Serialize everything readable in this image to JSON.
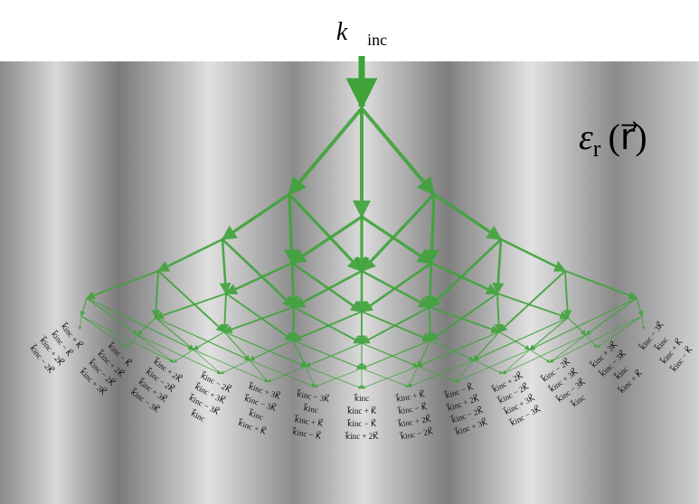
{
  "top_label": {
    "symbol": "k⃗",
    "subscript": "inc"
  },
  "medium_label": {
    "symbol": "ε",
    "subscript": "r",
    "argument": "(r⃗)"
  },
  "leaf_labels": [
    "k⃗inc",
    "k⃗inc + K⃗",
    "k⃗inc − K⃗",
    "k⃗inc + 2K⃗",
    "k⃗inc − 2K⃗",
    "k⃗inc + 3K⃗",
    "k⃗inc − 3K⃗"
  ]
}
